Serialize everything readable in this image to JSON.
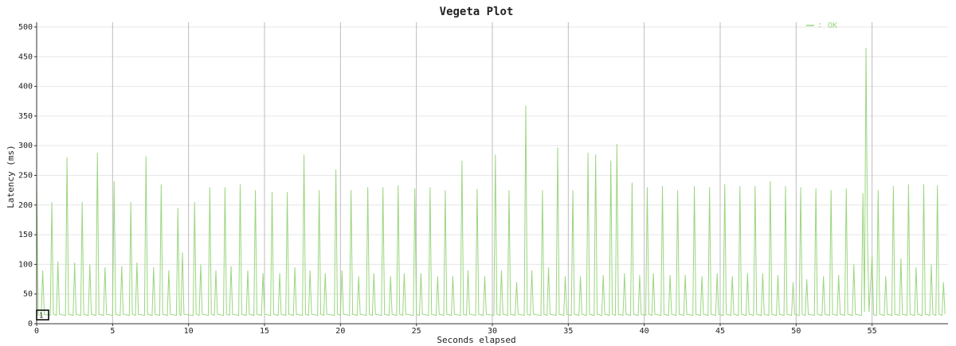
{
  "chart_data": {
    "type": "line",
    "title": "Vegeta Plot",
    "x_label": "Seconds elapsed",
    "y_label": "Latency (ms)",
    "annotation": "1",
    "xlim": [
      0,
      60
    ],
    "ylim": [
      0,
      508
    ],
    "xticks": [
      0,
      5,
      10,
      15,
      20,
      25,
      30,
      35,
      40,
      45,
      50,
      55
    ],
    "yticks": [
      0,
      50,
      100,
      150,
      200,
      250,
      300,
      350,
      400,
      450,
      500
    ],
    "grid": true,
    "legend": "upper right",
    "x": [
      0,
      0.1,
      0.3,
      0.4,
      0.5,
      0.9,
      1.0,
      1.1,
      1.3,
      1.4,
      1.5,
      1.9,
      2.0,
      2.1,
      2.4,
      2.5,
      2.6,
      2.9,
      3.0,
      3.1,
      3.4,
      3.5,
      3.6,
      3.9,
      4.0,
      4.1,
      4.4,
      4.5,
      4.6,
      5.0,
      5.1,
      5.2,
      5.5,
      5.6,
      5.7,
      6.1,
      6.2,
      6.3,
      6.5,
      6.6,
      6.7,
      7.1,
      7.2,
      7.3,
      7.6,
      7.7,
      7.8,
      8.1,
      8.2,
      8.3,
      8.6,
      8.7,
      8.8,
      9.2,
      9.3,
      9.4,
      9.5,
      9.6,
      9.7,
      10.3,
      10.4,
      10.5,
      10.7,
      10.8,
      10.9,
      11.3,
      11.4,
      11.5,
      11.7,
      11.8,
      11.9,
      12.3,
      12.4,
      12.5,
      12.7,
      12.8,
      12.9,
      13.3,
      13.4,
      13.5,
      13.8,
      13.9,
      14.0,
      14.3,
      14.4,
      14.5,
      14.8,
      14.9,
      15.0,
      15.4,
      15.5,
      15.6,
      15.9,
      16.0,
      16.1,
      16.4,
      16.5,
      16.6,
      16.9,
      17.0,
      17.1,
      17.5,
      17.6,
      17.7,
      17.9,
      18.0,
      18.1,
      18.5,
      18.6,
      18.7,
      18.9,
      19.0,
      19.1,
      19.6,
      19.7,
      19.8,
      20.0,
      20.1,
      20.2,
      20.6,
      20.7,
      20.8,
      21.1,
      21.2,
      21.3,
      21.7,
      21.8,
      21.9,
      22.1,
      22.2,
      22.3,
      22.7,
      22.8,
      22.9,
      23.2,
      23.3,
      23.4,
      23.7,
      23.8,
      23.9,
      24.1,
      24.2,
      24.3,
      24.8,
      24.9,
      25.0,
      25.2,
      25.3,
      25.4,
      25.8,
      25.9,
      26.0,
      26.3,
      26.4,
      26.5,
      26.8,
      26.9,
      27.0,
      27.3,
      27.4,
      27.5,
      27.9,
      28.0,
      28.1,
      28.3,
      28.4,
      28.5,
      28.9,
      29.0,
      29.1,
      29.4,
      29.5,
      29.6,
      30.1,
      30.2,
      30.3,
      30.5,
      30.6,
      30.7,
      31.0,
      31.1,
      31.2,
      31.5,
      31.6,
      31.7,
      32.1,
      32.2,
      32.3,
      32.5,
      32.6,
      32.7,
      33.2,
      33.3,
      33.4,
      33.6,
      33.7,
      33.8,
      34.2,
      34.3,
      34.4,
      34.7,
      34.8,
      34.9,
      35.2,
      35.3,
      35.4,
      35.7,
      35.8,
      35.9,
      36.2,
      36.3,
      36.4,
      36.7,
      36.8,
      36.9,
      37.2,
      37.3,
      37.4,
      37.7,
      37.8,
      37.9,
      38.1,
      38.2,
      38.3,
      38.6,
      38.7,
      38.8,
      39.1,
      39.2,
      39.3,
      39.6,
      39.7,
      39.8,
      40.1,
      40.2,
      40.3,
      40.5,
      40.6,
      40.7,
      41.1,
      41.2,
      41.3,
      41.6,
      41.7,
      41.8,
      42.1,
      42.2,
      42.3,
      42.6,
      42.7,
      42.8,
      43.2,
      43.3,
      43.4,
      43.7,
      43.8,
      43.9,
      44.2,
      44.3,
      44.4,
      44.7,
      44.8,
      44.9,
      45.2,
      45.3,
      45.4,
      45.7,
      45.8,
      45.9,
      46.2,
      46.3,
      46.4,
      46.7,
      46.8,
      46.9,
      47.2,
      47.3,
      47.4,
      47.7,
      47.8,
      47.9,
      48.2,
      48.3,
      48.4,
      48.7,
      48.8,
      48.9,
      49.2,
      49.3,
      49.4,
      49.7,
      49.8,
      49.9,
      50.2,
      50.3,
      50.4,
      50.6,
      50.7,
      50.8,
      51.2,
      51.3,
      51.4,
      51.7,
      51.8,
      51.9,
      52.2,
      52.3,
      52.4,
      52.7,
      52.8,
      52.9,
      53.2,
      53.3,
      53.4,
      53.7,
      53.8,
      53.9,
      54.3,
      54.4,
      54.5,
      54.6,
      54.7,
      54.8,
      55.0,
      55.1,
      55.3,
      55.4,
      55.5,
      55.8,
      55.9,
      56.0,
      56.3,
      56.4,
      56.5,
      56.8,
      56.9,
      57.0,
      57.3,
      57.4,
      57.5,
      57.8,
      57.9,
      58.0,
      58.3,
      58.4,
      58.5,
      58.8,
      58.9,
      59.0,
      59.2,
      59.3,
      59.4,
      59.6,
      59.7,
      59.8
    ],
    "series": [
      {
        "name": "OK",
        "color": "#9bd67f",
        "values": [
          250,
          15,
          14,
          90,
          16,
          14,
          205,
          16,
          14,
          105,
          16,
          14,
          280,
          16,
          14,
          103,
          16,
          14,
          205,
          16,
          14,
          100,
          16,
          14,
          288,
          16,
          14,
          95,
          16,
          14,
          240,
          16,
          14,
          97,
          16,
          14,
          205,
          16,
          14,
          103,
          16,
          14,
          282,
          16,
          14,
          95,
          16,
          14,
          235,
          16,
          14,
          90,
          16,
          14,
          195,
          16,
          14,
          120,
          16,
          14,
          205,
          16,
          14,
          100,
          16,
          14,
          230,
          16,
          14,
          90,
          16,
          14,
          230,
          16,
          14,
          97,
          16,
          14,
          235,
          16,
          14,
          90,
          16,
          14,
          225,
          16,
          14,
          85,
          16,
          14,
          222,
          16,
          14,
          85,
          16,
          14,
          222,
          16,
          14,
          95,
          16,
          14,
          285,
          16,
          14,
          90,
          16,
          14,
          225,
          16,
          14,
          85,
          16,
          14,
          260,
          16,
          14,
          90,
          16,
          14,
          225,
          16,
          14,
          80,
          16,
          14,
          230,
          16,
          14,
          85,
          16,
          14,
          230,
          16,
          14,
          80,
          16,
          14,
          233,
          16,
          14,
          85,
          16,
          14,
          228,
          16,
          14,
          85,
          16,
          14,
          230,
          16,
          14,
          80,
          16,
          14,
          225,
          16,
          14,
          80,
          16,
          14,
          275,
          16,
          14,
          90,
          16,
          14,
          227,
          16,
          14,
          80,
          16,
          14,
          285,
          16,
          14,
          90,
          16,
          14,
          225,
          16,
          14,
          70,
          16,
          14,
          368,
          16,
          14,
          90,
          16,
          14,
          225,
          16,
          14,
          95,
          16,
          14,
          297,
          16,
          14,
          80,
          16,
          14,
          225,
          16,
          14,
          80,
          16,
          14,
          288,
          16,
          14,
          285,
          16,
          14,
          82,
          16,
          14,
          275,
          16,
          14,
          303,
          16,
          14,
          85,
          16,
          14,
          238,
          16,
          14,
          82,
          16,
          14,
          230,
          16,
          14,
          85,
          16,
          14,
          232,
          16,
          14,
          82,
          16,
          14,
          225,
          16,
          14,
          82,
          16,
          14,
          232,
          16,
          14,
          80,
          16,
          14,
          230,
          16,
          14,
          85,
          16,
          14,
          235,
          16,
          14,
          80,
          16,
          14,
          232,
          16,
          14,
          85,
          16,
          14,
          232,
          16,
          14,
          85,
          16,
          14,
          240,
          16,
          14,
          82,
          16,
          14,
          232,
          16,
          14,
          70,
          16,
          14,
          230,
          16,
          14,
          75,
          16,
          14,
          228,
          16,
          14,
          80,
          16,
          14,
          225,
          16,
          14,
          82,
          16,
          14,
          228,
          16,
          14,
          100,
          16,
          14,
          220,
          20,
          465,
          140,
          20,
          115,
          15,
          14,
          225,
          16,
          14,
          80,
          16,
          14,
          232,
          16,
          14,
          110,
          16,
          14,
          235,
          16,
          14,
          95,
          16,
          14,
          235,
          16,
          14,
          100,
          16,
          14,
          233,
          16,
          14,
          70,
          16
        ]
      }
    ]
  }
}
